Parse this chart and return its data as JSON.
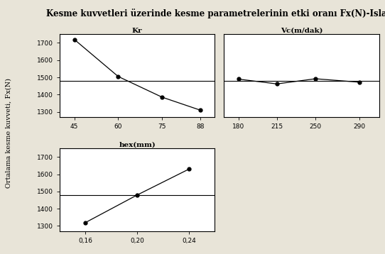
{
  "title": "Kesme kuvvetleri üzerinde kesme parametrelerinin etki oranı Fx(N)-Islak",
  "ylabel": "Ortalama kesme kuvveti, Fx(N)",
  "background_color": "#e8e4d8",
  "panel_color": "#ffffff",
  "panel1": {
    "title": "Kr",
    "x": [
      45,
      60,
      75,
      88
    ],
    "y": [
      1720,
      1505,
      1385,
      1310
    ],
    "xlim": [
      40,
      93
    ],
    "ylim": [
      1270,
      1750
    ],
    "xticks": [
      45,
      60,
      75,
      88
    ],
    "yticks": [
      1300,
      1400,
      1500,
      1600,
      1700
    ],
    "hline": 1480
  },
  "panel2": {
    "title": "Vc(m/dak)",
    "x": [
      180,
      215,
      250,
      290
    ],
    "y": [
      1490,
      1462,
      1492,
      1472
    ],
    "xlim": [
      167,
      308
    ],
    "ylim": [
      1270,
      1750
    ],
    "xticks": [
      180,
      215,
      250,
      290
    ],
    "yticks": [
      1300,
      1400,
      1500,
      1600,
      1700
    ],
    "hline": 1480
  },
  "panel3": {
    "title": "hex(mm)",
    "x": [
      0.16,
      0.2,
      0.24
    ],
    "y": [
      1320,
      1480,
      1630
    ],
    "xlim": [
      0.14,
      0.26
    ],
    "ylim": [
      1270,
      1750
    ],
    "xticks": [
      0.16,
      0.2,
      0.24
    ],
    "yticks": [
      1300,
      1400,
      1500,
      1600,
      1700
    ],
    "hline": 1480
  }
}
